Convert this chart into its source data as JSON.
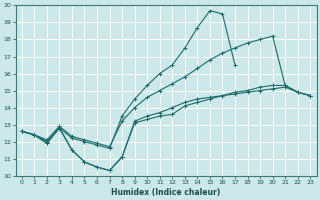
{
  "xlabel": "Humidex (Indice chaleur)",
  "xlim": [
    -0.5,
    23.5
  ],
  "ylim": [
    10,
    20
  ],
  "xticks": [
    0,
    1,
    2,
    3,
    4,
    5,
    6,
    7,
    8,
    9,
    10,
    11,
    12,
    13,
    14,
    15,
    16,
    17,
    18,
    19,
    20,
    21,
    22,
    23
  ],
  "yticks": [
    10,
    11,
    12,
    13,
    14,
    15,
    16,
    17,
    18,
    19,
    20
  ],
  "bg_color": "#cce8e8",
  "line_color": "#1a6b6b",
  "grid_color": "#ffffff",
  "line1_x": [
    0,
    1,
    2,
    3,
    4,
    5,
    6,
    7,
    8,
    9,
    10,
    11,
    12,
    13,
    14,
    15,
    16,
    17,
    18,
    19,
    20,
    21,
    22,
    23
  ],
  "line1_y": [
    12.6,
    12.4,
    11.9,
    12.8,
    11.5,
    10.8,
    10.5,
    10.3,
    11.1,
    13.1,
    13.3,
    13.5,
    13.6,
    14.1,
    14.3,
    14.5,
    14.7,
    14.9,
    15.0,
    15.2,
    15.3,
    15.3,
    14.9,
    14.7
  ],
  "line2_x": [
    0,
    1,
    2,
    3,
    4,
    5,
    6,
    7,
    8,
    9,
    10,
    11,
    12,
    13,
    14,
    15,
    16,
    17
  ],
  "line2_y": [
    12.6,
    12.4,
    12.0,
    12.8,
    12.2,
    12.0,
    11.8,
    11.6,
    13.5,
    14.5,
    15.3,
    16.0,
    16.5,
    17.5,
    18.7,
    19.7,
    19.5,
    16.5
  ],
  "line3_x": [
    0,
    1,
    2,
    3,
    4,
    5,
    6,
    7,
    8,
    9,
    10,
    11,
    12,
    13,
    14,
    15,
    16,
    17,
    18,
    19,
    20,
    21,
    22,
    23
  ],
  "line3_y": [
    12.6,
    12.4,
    12.1,
    12.9,
    12.3,
    12.1,
    11.9,
    11.7,
    13.2,
    14.0,
    14.6,
    15.0,
    15.4,
    15.8,
    16.3,
    16.8,
    17.2,
    17.5,
    17.8,
    18.0,
    18.2,
    15.3,
    14.9,
    14.7
  ],
  "line4_x": [
    0,
    1,
    2,
    3,
    4,
    5,
    6,
    7,
    8,
    9,
    10,
    11,
    12,
    13,
    14,
    15,
    16,
    17,
    18,
    19,
    20,
    21,
    22,
    23
  ],
  "line4_y": [
    12.6,
    12.4,
    11.9,
    12.8,
    11.5,
    10.8,
    10.5,
    10.3,
    11.1,
    13.2,
    13.5,
    13.7,
    14.0,
    14.3,
    14.5,
    14.6,
    14.7,
    14.8,
    14.9,
    15.0,
    15.1,
    15.2,
    14.9,
    14.7
  ]
}
